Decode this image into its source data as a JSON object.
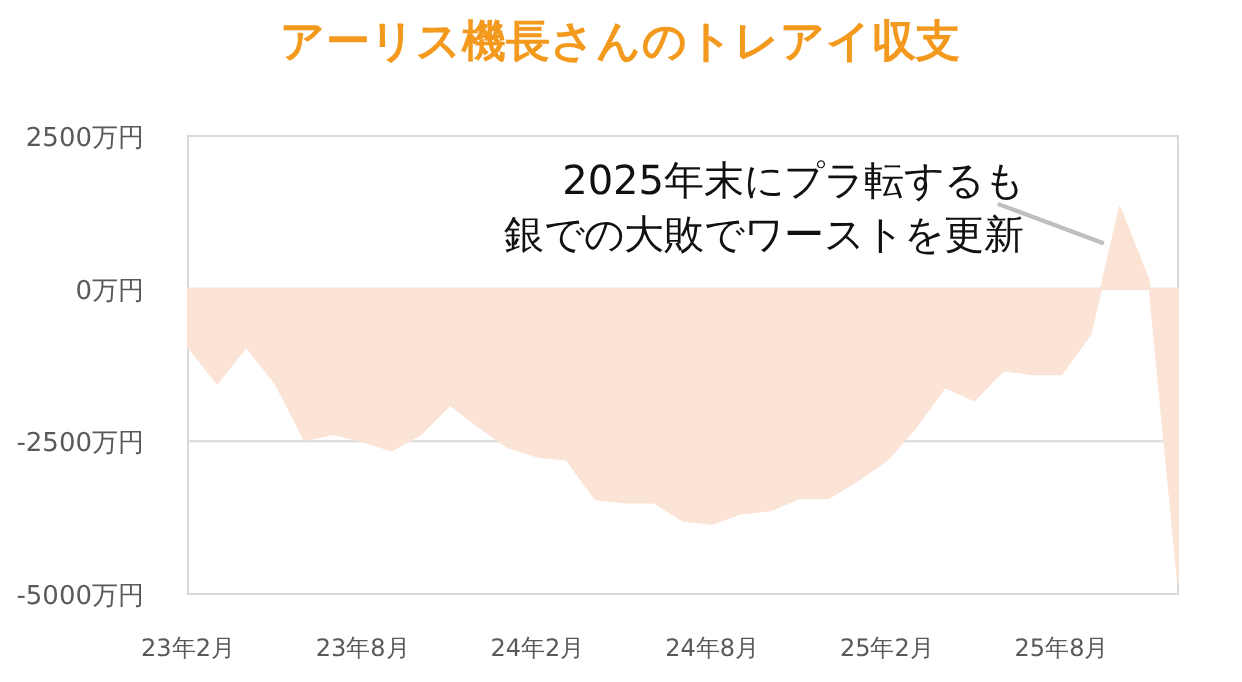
{
  "chart_data": {
    "type": "area",
    "title": "アーリス機長さんのトレアイ収支",
    "x": [
      "2023-02",
      "2023-03",
      "2023-04",
      "2023-05",
      "2023-06",
      "2023-07",
      "2023-08",
      "2023-09",
      "2023-10",
      "2023-11",
      "2023-12",
      "2024-01",
      "2024-02",
      "2024-03",
      "2024-04",
      "2024-05",
      "2024-06",
      "2024-07",
      "2024-08",
      "2024-09",
      "2024-10",
      "2024-11",
      "2024-12",
      "2025-01",
      "2025-02",
      "2025-03",
      "2025-04",
      "2025-05",
      "2025-06",
      "2025-07",
      "2025-08",
      "2025-09",
      "2025-10",
      "2025-11",
      "2025-12"
    ],
    "series": [
      {
        "color": "#fbe3d6",
        "values": [
          -950,
          -1550,
          -950,
          -1550,
          -2480,
          -2380,
          -2500,
          -2650,
          -2380,
          -1900,
          -2270,
          -2600,
          -2750,
          -2800,
          -3450,
          -3500,
          -3500,
          -3800,
          -3850,
          -3680,
          -3630,
          -3430,
          -3430,
          -3140,
          -2810,
          -2270,
          -1610,
          -1830,
          -1340,
          -1400,
          -1400,
          -740,
          1330,
          130,
          -4800
        ]
      }
    ],
    "xlim": [
      "2023-02",
      "2025-12"
    ],
    "xticks": [
      {
        "value": "2023-02",
        "label": "23年2月"
      },
      {
        "value": "2023-08",
        "label": "23年8月"
      },
      {
        "value": "2024-02",
        "label": "24年2月"
      },
      {
        "value": "2024-08",
        "label": "24年8月"
      },
      {
        "value": "2025-02",
        "label": "25年2月"
      },
      {
        "value": "2025-08",
        "label": "25年8月"
      }
    ],
    "ylim": [
      -5000,
      2500
    ],
    "yticks": [
      {
        "value": 2500,
        "label": "2500万円"
      },
      {
        "value": 0,
        "label": "0万円"
      },
      {
        "value": -2500,
        "label": "-2500万円"
      },
      {
        "value": -5000,
        "label": "-5000万円"
      }
    ],
    "grid": "y",
    "annotations": [
      {
        "text": "2025年末にプラ転するも",
        "x": "2025-10",
        "y": 1330
      },
      {
        "text": "銀での大敗でワーストを更新",
        "x": "2025-10",
        "y": 1330
      }
    ]
  }
}
